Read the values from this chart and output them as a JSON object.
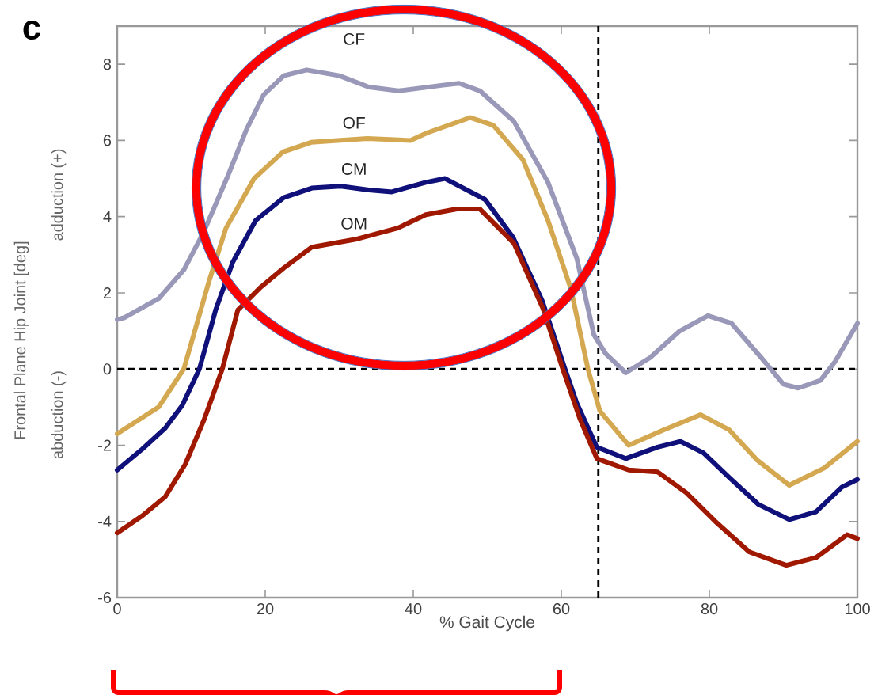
{
  "chart_data": {
    "type": "line",
    "xlabel": "% Gait Cycle",
    "ylabel": "Frontal Plane Hip Joint [deg]",
    "annotations": [
      "c",
      "adduction (+)",
      "abduction (-)"
    ],
    "xlim": [
      0,
      100
    ],
    "ylim": [
      -6,
      9
    ],
    "xticks": [
      0,
      20,
      40,
      60,
      80,
      100
    ],
    "yticks": [
      -6,
      -4,
      -2,
      0,
      2,
      4,
      6,
      8
    ],
    "ref_lines": [
      {
        "axis": "y",
        "value": 0,
        "color": "#000000",
        "line_style": "dashed"
      },
      {
        "axis": "x",
        "value": 65,
        "color": "#000000",
        "line_style": "dashed"
      }
    ],
    "series": [
      {
        "name": "CF",
        "color": "#9a98b8",
        "x": [
          0,
          1,
          5.6,
          9,
          11.7,
          14.8,
          17.5,
          19.8,
          22.5,
          25.6,
          30,
          34,
          38,
          44,
          46.2,
          49,
          53.6,
          58.2,
          62.1,
          64.4,
          66,
          68.7,
          72,
          76,
          79.8,
          83,
          87,
          90,
          92,
          95,
          97,
          100
        ],
        "values": [
          1.3,
          1.35,
          1.85,
          2.6,
          3.6,
          5.0,
          6.3,
          7.2,
          7.7,
          7.85,
          7.7,
          7.4,
          7.3,
          7.45,
          7.5,
          7.3,
          6.5,
          4.9,
          2.9,
          0.9,
          0.4,
          -0.1,
          0.3,
          1.0,
          1.4,
          1.2,
          0.3,
          -0.4,
          -0.5,
          -0.3,
          0.2,
          1.2
        ]
      },
      {
        "name": "OF",
        "color": "#d4a850",
        "x": [
          0,
          5.6,
          9,
          12.4,
          14.7,
          18.5,
          22.4,
          26.2,
          33.8,
          39.6,
          41.9,
          47.7,
          50.8,
          54.8,
          58.2,
          61.3,
          63.6,
          65.2,
          69.1,
          73.8,
          78.8,
          82.7,
          86.5,
          90.8,
          95.5,
          100
        ],
        "values": [
          -1.7,
          -1.0,
          0,
          2.3,
          3.7,
          5.0,
          5.7,
          5.95,
          6.05,
          6.0,
          6.2,
          6.6,
          6.4,
          5.5,
          3.9,
          2.1,
          0,
          -1.1,
          -2.0,
          -1.6,
          -1.2,
          -1.6,
          -2.4,
          -3.05,
          -2.6,
          -1.9
        ]
      },
      {
        "name": "CM",
        "color": "#10107a",
        "x": [
          0,
          3.4,
          6.5,
          8.8,
          11.1,
          13.3,
          15.6,
          18.7,
          22.5,
          26.3,
          30.2,
          34,
          37.1,
          41.7,
          44.3,
          49.7,
          53.5,
          57.4,
          60.5,
          62.1,
          64.8,
          68.7,
          73,
          76.1,
          79.2,
          82.7,
          86.6,
          90.8,
          94.4,
          97.9,
          100
        ],
        "values": [
          -2.65,
          -2.1,
          -1.55,
          -0.95,
          0,
          1.55,
          2.8,
          3.9,
          4.5,
          4.75,
          4.8,
          4.7,
          4.65,
          4.9,
          5.0,
          4.45,
          3.45,
          1.8,
          0,
          -0.9,
          -2.05,
          -2.35,
          -2.05,
          -1.9,
          -2.2,
          -2.85,
          -3.55,
          -3.95,
          -3.75,
          -3.1,
          -2.9
        ]
      },
      {
        "name": "OM",
        "color": "#a01800",
        "x": [
          0,
          3.4,
          6.5,
          9.2,
          11.8,
          14.2,
          16.3,
          19.4,
          22.5,
          26.3,
          32.1,
          37.9,
          41.7,
          45.9,
          49,
          53.6,
          57.5,
          60.2,
          62.5,
          64.8,
          69.1,
          73,
          76.9,
          80.8,
          85.4,
          90.4,
          94.4,
          98.6,
          100
        ],
        "values": [
          -4.3,
          -3.85,
          -3.35,
          -2.5,
          -1.3,
          0,
          1.55,
          2.15,
          2.65,
          3.2,
          3.4,
          3.7,
          4.05,
          4.2,
          4.2,
          3.3,
          1.6,
          0,
          -1.3,
          -2.35,
          -2.65,
          -2.7,
          -3.25,
          -4.0,
          -4.8,
          -5.15,
          -4.95,
          -4.35,
          -4.45
        ]
      }
    ]
  }
}
